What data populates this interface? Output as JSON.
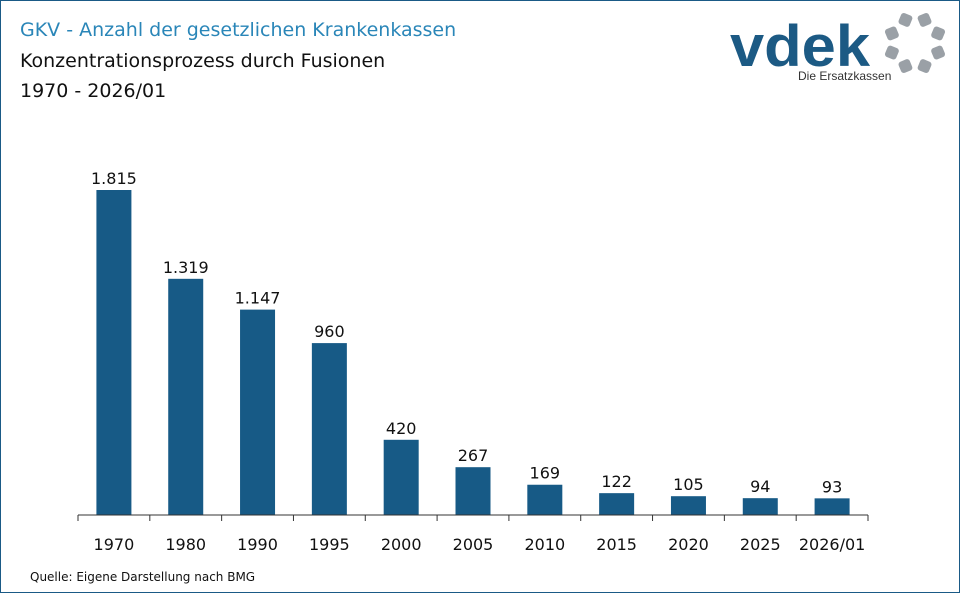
{
  "header": {
    "title": "GKV - Anzahl der gesetzlichen Krankenkassen",
    "subtitle": "Konzentrationsprozess durch Fusionen",
    "period": "1970 - 2026/01"
  },
  "logo": {
    "wordmark": "vdek",
    "tagline": "Die Ersatzkassen"
  },
  "footer": {
    "source": "Quelle: Eigene Darstellung nach BMG"
  },
  "colors": {
    "bar": "#175a86",
    "title": "#2a86b8",
    "logo_text": "#1c5a84",
    "logo_ring": "#9aa0a6"
  },
  "chart_data": {
    "type": "bar",
    "title": "GKV - Anzahl der gesetzlichen Krankenkassen",
    "xlabel": "",
    "ylabel": "",
    "categories": [
      "1970",
      "1980",
      "1990",
      "1995",
      "2000",
      "2005",
      "2010",
      "2015",
      "2020",
      "2025",
      "2026/01"
    ],
    "values": [
      1815,
      1319,
      1147,
      960,
      420,
      267,
      169,
      122,
      105,
      94,
      93
    ],
    "value_labels": [
      "1.815",
      "1.319",
      "1.147",
      "960",
      "420",
      "267",
      "169",
      "122",
      "105",
      "94",
      "93"
    ],
    "ylim": [
      0,
      1815
    ],
    "grid": false,
    "legend": "none"
  }
}
